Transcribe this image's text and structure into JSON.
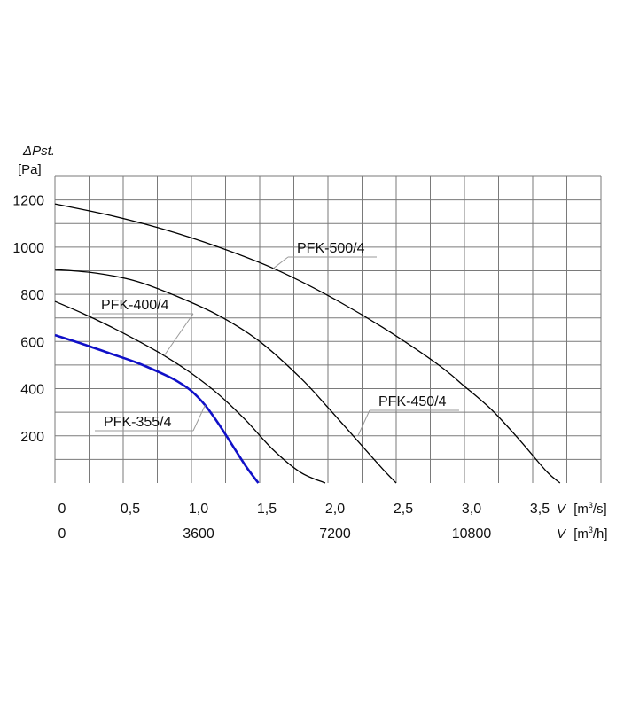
{
  "chart_data": {
    "type": "line",
    "title": "",
    "ylabel": {
      "symbol": "ΔPst.",
      "unit": "[Pa]"
    },
    "xlabel_flow_s": {
      "symbol": "V",
      "unit_open": "[m",
      "unit_sup": "3",
      "unit_close": "/s]"
    },
    "xlabel_flow_h": {
      "symbol": "V",
      "unit_open": "[m",
      "unit_sup": "3",
      "unit_close": "/h]"
    },
    "xlim": [
      0,
      4.0
    ],
    "ylim": [
      0,
      1300
    ],
    "grid": true,
    "x_ticks": [
      {
        "value": 0,
        "label": "0"
      },
      {
        "value": 0.5,
        "label": "0,5"
      },
      {
        "value": 1.0,
        "label": "1,0"
      },
      {
        "value": 1.5,
        "label": "1,5"
      },
      {
        "value": 2.0,
        "label": "2,0"
      },
      {
        "value": 2.5,
        "label": "2,5"
      },
      {
        "value": 3.0,
        "label": "3,0"
      },
      {
        "value": 3.5,
        "label": "3,5"
      }
    ],
    "x2_ticks": [
      {
        "value": 0,
        "label": "0"
      },
      {
        "value": 3600,
        "label": "3600"
      },
      {
        "value": 7200,
        "label": "7200"
      },
      {
        "value": 10800,
        "label": "10800"
      }
    ],
    "y_ticks": [
      {
        "value": 200,
        "label": "200"
      },
      {
        "value": 400,
        "label": "400"
      },
      {
        "value": 600,
        "label": "600"
      },
      {
        "value": 800,
        "label": "800"
      },
      {
        "value": 1000,
        "label": "1000"
      },
      {
        "value": 1200,
        "label": "1200"
      }
    ],
    "series": [
      {
        "name": "PFK-355/4",
        "color": "#1010c8",
        "x": [
          0,
          0.2,
          0.4,
          0.6,
          0.8,
          0.9,
          1.0,
          1.1,
          1.2,
          1.3,
          1.4,
          1.49
        ],
        "y": [
          627,
          590,
          550,
          510,
          460,
          430,
          390,
          330,
          250,
          160,
          70,
          0
        ]
      },
      {
        "name": "PFK-400/4",
        "color": "#000000",
        "x": [
          0,
          0.2,
          0.4,
          0.6,
          0.8,
          1.0,
          1.2,
          1.4,
          1.6,
          1.8,
          1.98
        ],
        "y": [
          770,
          720,
          665,
          605,
          540,
          465,
          375,
          265,
          140,
          45,
          0
        ]
      },
      {
        "name": "PFK-450/4",
        "color": "#000000",
        "x": [
          0,
          0.3,
          0.6,
          0.9,
          1.2,
          1.5,
          1.8,
          2.0,
          2.2,
          2.4,
          2.5
        ],
        "y": [
          905,
          890,
          855,
          790,
          710,
          600,
          445,
          320,
          190,
          60,
          0
        ]
      },
      {
        "name": "PFK-500/4",
        "color": "#000000",
        "x": [
          0,
          0.4,
          0.8,
          1.2,
          1.6,
          2.0,
          2.4,
          2.8,
          3.0,
          3.2,
          3.4,
          3.6,
          3.7
        ],
        "y": [
          1183,
          1135,
          1075,
          1000,
          910,
          795,
          660,
          505,
          410,
          310,
          185,
          50,
          0
        ]
      }
    ],
    "annotations": [
      {
        "text": "PFK-500/4",
        "series": "PFK-500/4",
        "x": 1.6,
        "y": 910
      },
      {
        "text": "PFK-400/4",
        "series": "PFK-400/4",
        "x": 0.8,
        "y": 540
      },
      {
        "text": "PFK-450/4",
        "series": "PFK-450/4",
        "x": 2.22,
        "y": 200
      },
      {
        "text": "PFK-355/4",
        "series": "PFK-355/4",
        "x": 1.1,
        "y": 330
      }
    ]
  }
}
